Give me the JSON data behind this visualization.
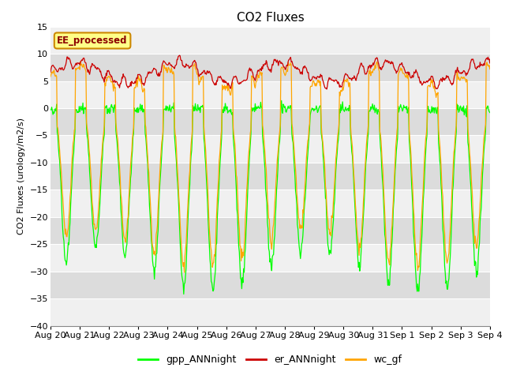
{
  "title": "CO2 Fluxes",
  "ylabel": "CO2 Fluxes (urology/m2/s)",
  "ylim": [
    -40,
    15
  ],
  "yticks": [
    -40,
    -35,
    -30,
    -25,
    -20,
    -15,
    -10,
    -5,
    0,
    5,
    10,
    15
  ],
  "date_labels": [
    "Aug 20",
    "Aug 21",
    "Aug 22",
    "Aug 23",
    "Aug 24",
    "Aug 25",
    "Aug 26",
    "Aug 27",
    "Aug 28",
    "Aug 29",
    "Aug 30",
    "Aug 31",
    "Sep 1",
    "Sep 2",
    "Sep 3",
    "Sep 4"
  ],
  "n_days": 15,
  "pts_per_day": 48,
  "gpp_color": "#00FF00",
  "er_color": "#CC0000",
  "wc_color": "#FFA500",
  "title_fontsize": 11,
  "axis_fontsize": 8,
  "tick_fontsize": 8,
  "legend_box_text": "EE_processed",
  "legend_box_color": "#FFFF88",
  "legend_box_edge": "#CC8800",
  "bg_band_dark": "#DCDCDC",
  "bg_band_light": "#F0F0F0",
  "legend_labels": [
    "gpp_ANNnight",
    "er_ANNnight",
    "wc_gf"
  ],
  "legend_colors": [
    "#00FF00",
    "#CC0000",
    "#FFA500"
  ]
}
